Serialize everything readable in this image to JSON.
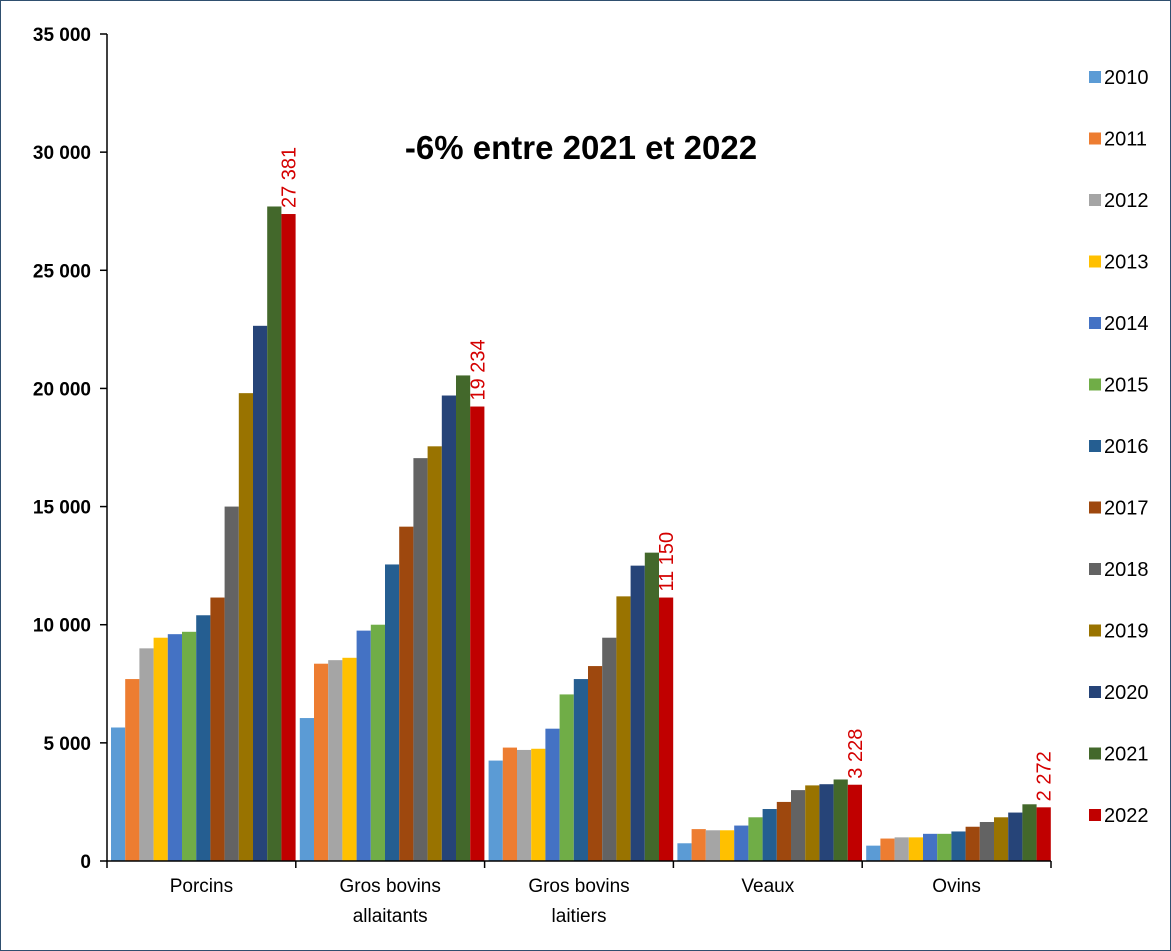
{
  "chart_data": {
    "type": "bar",
    "title": "",
    "xlabel": "",
    "ylabel": "",
    "annotation": "-6% entre 2021 et 2022",
    "ylim": [
      0,
      35000
    ],
    "yticks": [
      0,
      5000,
      10000,
      15000,
      20000,
      25000,
      30000,
      35000
    ],
    "ytick_labels": [
      "0",
      "5 000",
      "10 000",
      "15 000",
      "20 000",
      "25 000",
      "30 000",
      "35 000"
    ],
    "categories": [
      [
        "Porcins"
      ],
      [
        "Gros bovins",
        "allaitants"
      ],
      [
        "Gros bovins",
        "laitiers"
      ],
      [
        "Veaux"
      ],
      [
        "Ovins"
      ]
    ],
    "legend_position": "right",
    "series": [
      {
        "name": "2010",
        "color": "#5b9bd5",
        "values": [
          5650,
          6050,
          4250,
          750,
          650
        ]
      },
      {
        "name": "2011",
        "color": "#ed7d31",
        "values": [
          7700,
          8350,
          4800,
          1350,
          950
        ]
      },
      {
        "name": "2012",
        "color": "#a5a5a5",
        "values": [
          9000,
          8500,
          4700,
          1300,
          1000
        ]
      },
      {
        "name": "2013",
        "color": "#ffc000",
        "values": [
          9450,
          8600,
          4750,
          1300,
          1000
        ]
      },
      {
        "name": "2014",
        "color": "#4472c4",
        "values": [
          9600,
          9750,
          5600,
          1500,
          1150
        ]
      },
      {
        "name": "2015",
        "color": "#70ad47",
        "values": [
          9700,
          10000,
          7050,
          1850,
          1150
        ]
      },
      {
        "name": "2016",
        "color": "#255e91",
        "values": [
          10400,
          12550,
          7700,
          2200,
          1250
        ]
      },
      {
        "name": "2017",
        "color": "#9e480e",
        "values": [
          11150,
          14150,
          8250,
          2500,
          1450
        ]
      },
      {
        "name": "2018",
        "color": "#636363",
        "values": [
          15000,
          17050,
          9450,
          3000,
          1650
        ]
      },
      {
        "name": "2019",
        "color": "#997300",
        "values": [
          19800,
          17550,
          11200,
          3200,
          1850
        ]
      },
      {
        "name": "2020",
        "color": "#264478",
        "values": [
          22650,
          19700,
          12500,
          3250,
          2050
        ]
      },
      {
        "name": "2021",
        "color": "#43682b",
        "values": [
          27700,
          20550,
          13050,
          3450,
          2400
        ]
      },
      {
        "name": "2022",
        "color": "#c00000",
        "values": [
          27381,
          19234,
          11150,
          3228,
          2272
        ]
      }
    ],
    "data_labels": {
      "series": "2022",
      "color": "#d40000",
      "texts": [
        "27 381",
        "19 234",
        "11 150",
        "3 228",
        "2 272"
      ]
    }
  }
}
